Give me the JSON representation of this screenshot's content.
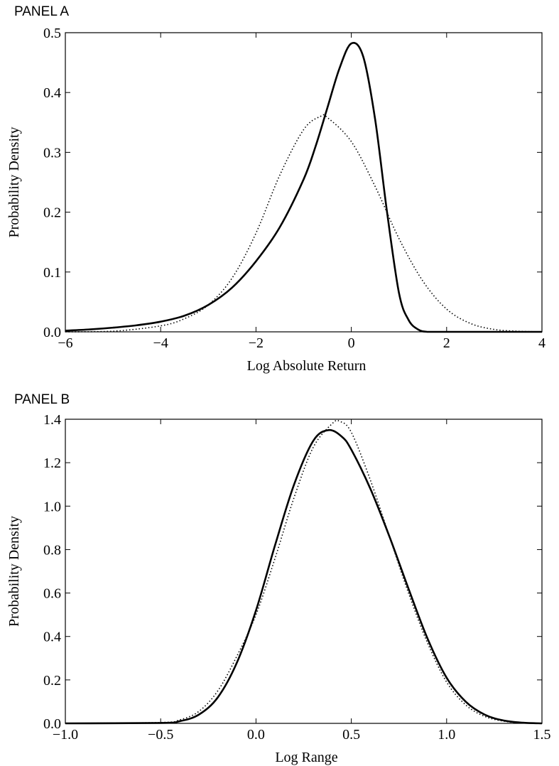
{
  "chart_data": [
    {
      "panel_label": "PANEL A",
      "type": "line",
      "title": "",
      "xlabel": "Log Absolute Return",
      "ylabel": "Probability Density",
      "xlim": [
        -6,
        4
      ],
      "ylim": [
        0,
        0.5
      ],
      "xticks": [
        -6,
        -4,
        -2,
        0,
        2,
        4
      ],
      "xtick_labels": [
        "−6",
        "−4",
        "−2",
        "0",
        "2",
        "4"
      ],
      "yticks": [
        0.0,
        0.1,
        0.2,
        0.3,
        0.4,
        0.5
      ],
      "ytick_labels": [
        "0.0",
        "0.1",
        "0.2",
        "0.3",
        "0.4",
        "0.5"
      ],
      "grid": false,
      "series": [
        {
          "style": "solid",
          "x": [
            -6,
            -5.5,
            -5,
            -4.5,
            -4,
            -3.5,
            -3,
            -2.5,
            -2,
            -1.5,
            -1,
            -0.75,
            -0.5,
            -0.25,
            0,
            0.25,
            0.5,
            0.75,
            1.0,
            1.2,
            1.4,
            1.6,
            2,
            3,
            4
          ],
          "y": [
            0.002,
            0.004,
            0.007,
            0.011,
            0.017,
            0.027,
            0.045,
            0.074,
            0.118,
            0.175,
            0.255,
            0.31,
            0.375,
            0.44,
            0.482,
            0.46,
            0.355,
            0.2,
            0.065,
            0.02,
            0.004,
            0.0,
            0.0,
            0.0,
            0.0
          ]
        },
        {
          "style": "dotted",
          "x": [
            -6,
            -5,
            -4,
            -3.5,
            -3,
            -2.5,
            -2,
            -1.5,
            -1,
            -0.65,
            -0.5,
            0,
            0.5,
            1,
            1.5,
            2,
            2.5,
            3,
            3.5,
            4
          ],
          "y": [
            0.0,
            0.001,
            0.01,
            0.022,
            0.045,
            0.09,
            0.165,
            0.262,
            0.338,
            0.36,
            0.358,
            0.318,
            0.243,
            0.156,
            0.085,
            0.038,
            0.014,
            0.004,
            0.001,
            0.0
          ]
        }
      ]
    },
    {
      "panel_label": "PANEL B",
      "type": "line",
      "title": "",
      "xlabel": "Log Range",
      "ylabel": "Probability Density",
      "xlim": [
        -1.0,
        1.5
      ],
      "ylim": [
        0,
        1.4
      ],
      "xticks": [
        -1.0,
        -0.5,
        0.0,
        0.5,
        1.0,
        1.5
      ],
      "xtick_labels": [
        "−1.0",
        "−0.5",
        "0.0",
        "0.5",
        "1.0",
        "1.5"
      ],
      "yticks": [
        0.0,
        0.2,
        0.4,
        0.6,
        0.8,
        1.0,
        1.2,
        1.4
      ],
      "ytick_labels": [
        "0.0",
        "0.2",
        "0.4",
        "0.6",
        "0.8",
        "1.0",
        "1.2",
        "1.4"
      ],
      "grid": false,
      "series": [
        {
          "style": "solid",
          "x": [
            -1.0,
            -0.5,
            -0.4,
            -0.3,
            -0.2,
            -0.1,
            0.0,
            0.1,
            0.2,
            0.3,
            0.38,
            0.45,
            0.5,
            0.6,
            0.7,
            0.8,
            0.9,
            1.0,
            1.1,
            1.2,
            1.3,
            1.4,
            1.5
          ],
          "y": [
            0.0,
            0.002,
            0.01,
            0.04,
            0.12,
            0.28,
            0.52,
            0.82,
            1.1,
            1.3,
            1.35,
            1.32,
            1.26,
            1.08,
            0.86,
            0.62,
            0.39,
            0.21,
            0.1,
            0.04,
            0.013,
            0.003,
            0.0
          ]
        },
        {
          "style": "dotted",
          "x": [
            -1.0,
            -0.5,
            -0.4,
            -0.3,
            -0.2,
            -0.1,
            0.0,
            0.1,
            0.2,
            0.3,
            0.4,
            0.44,
            0.5,
            0.6,
            0.7,
            0.8,
            0.9,
            1.0,
            1.1,
            1.2,
            1.3,
            1.4,
            1.5
          ],
          "y": [
            0.0,
            0.004,
            0.016,
            0.055,
            0.15,
            0.31,
            0.5,
            0.76,
            1.04,
            1.27,
            1.38,
            1.39,
            1.34,
            1.12,
            0.86,
            0.6,
            0.37,
            0.19,
            0.085,
            0.032,
            0.01,
            0.002,
            0.0
          ]
        }
      ]
    }
  ]
}
